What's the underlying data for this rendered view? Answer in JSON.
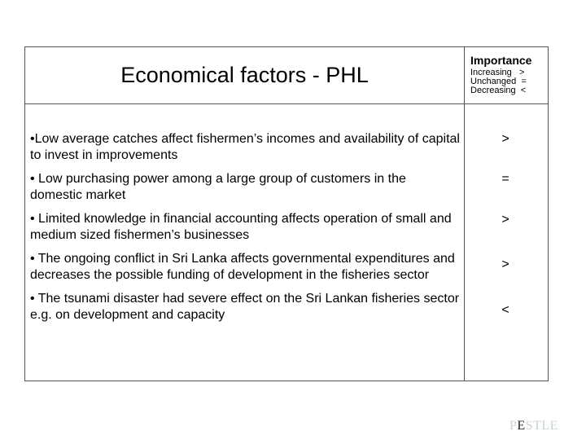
{
  "title": "Economical factors - PHL",
  "importance": {
    "heading": "Importance",
    "legend": [
      {
        "label": "Increasing",
        "symbol": ">"
      },
      {
        "label": "Unchanged",
        "symbol": "="
      },
      {
        "label": "Decreasing",
        "symbol": "<"
      }
    ]
  },
  "factors": [
    {
      "text": "•Low average catches affect fishermen’s incomes and availability of capital to invest in improvements",
      "importance": ">"
    },
    {
      "text": "• Low purchasing power among a large group of customers in the domestic market",
      "importance": "="
    },
    {
      "text": "• Limited knowledge in financial accounting affects operation of small and medium sized fishermen’s businesses",
      "importance": ">"
    },
    {
      "text": "• The ongoing conflict in Sri Lanka affects governmental expenditures and decreases the possible funding of development in the fisheries sector",
      "importance": ">"
    },
    {
      "text": "• The tsunami disaster had severe effect on the Sri Lankan fisheries sector e.g. on development and capacity",
      "importance": "<"
    }
  ],
  "logo": {
    "p": "P",
    "e": "E",
    "rest": "STLE"
  }
}
